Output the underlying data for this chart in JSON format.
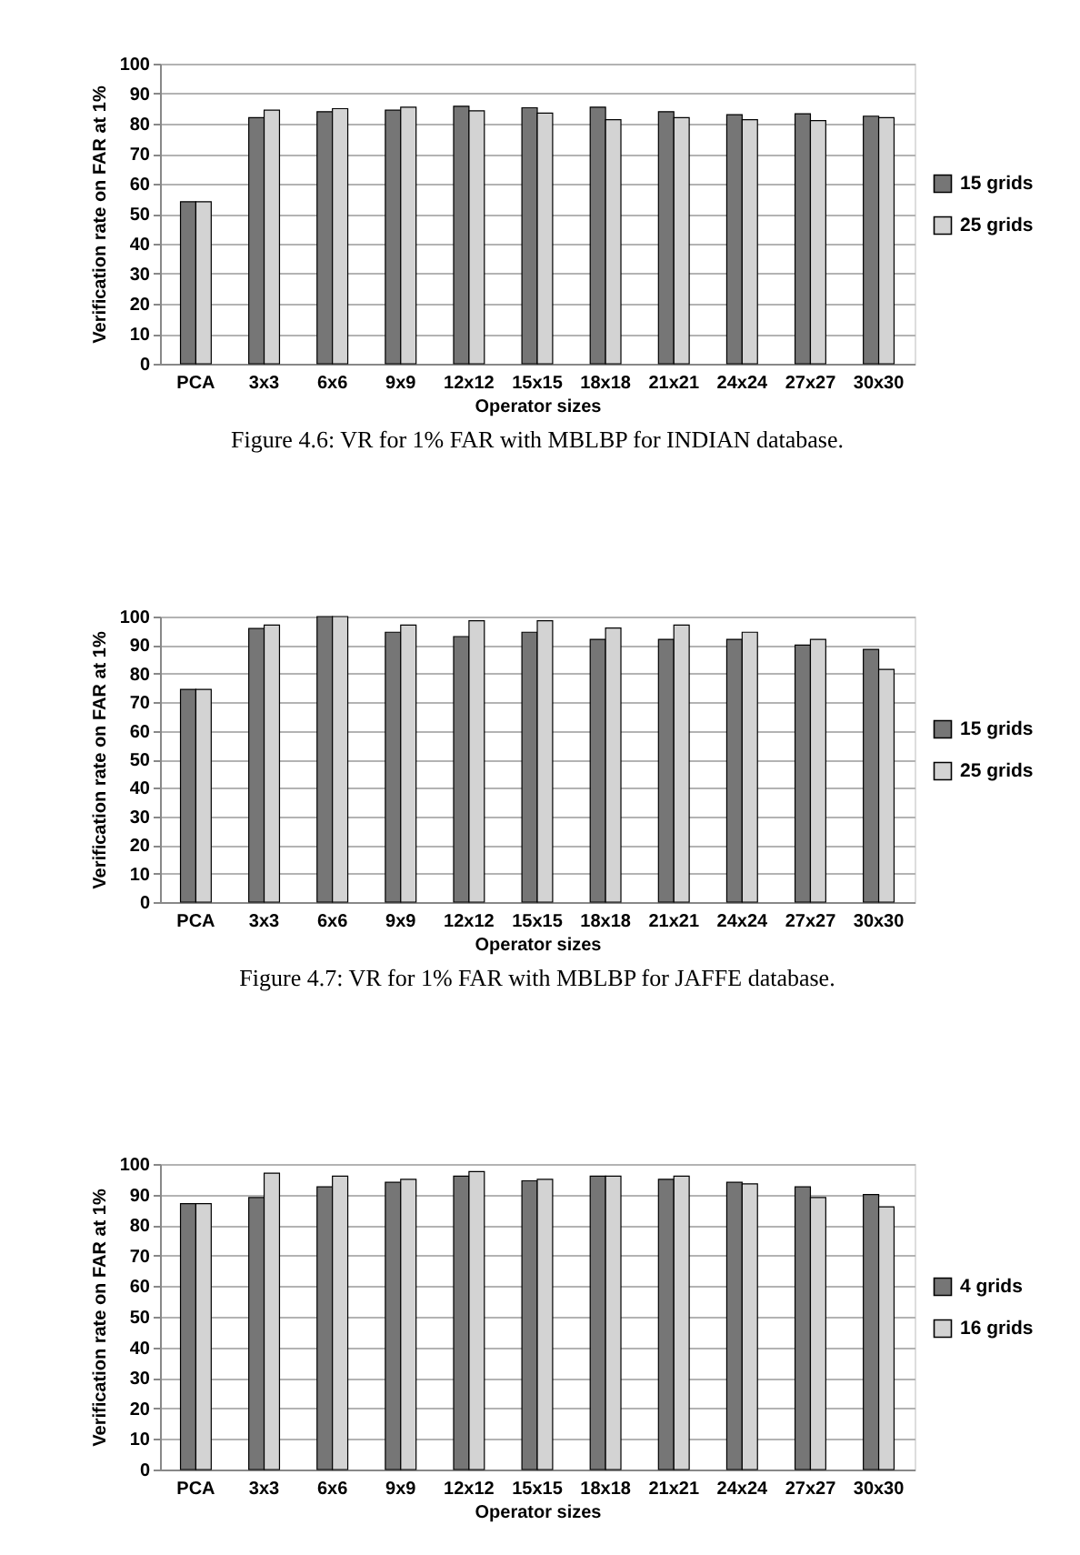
{
  "chart_data": [
    {
      "type": "bar",
      "xlabel": "Operator sizes",
      "ylabel": "Verification rate on FAR at 1%",
      "categories": [
        "PCA",
        "3x3",
        "6x6",
        "9x9",
        "12x12",
        "15x15",
        "18x18",
        "21x21",
        "24x24",
        "27x27",
        "30x30"
      ],
      "series": [
        {
          "name": "15 grids",
          "color": "#767676",
          "values": [
            54,
            82,
            84,
            84.5,
            85.8,
            85.3,
            85.5,
            84,
            83,
            83.3,
            82.5
          ]
        },
        {
          "name": "25 grids",
          "color": "#d3d3d3",
          "values": [
            54,
            84.5,
            85,
            85.5,
            84.3,
            83.5,
            81.3,
            82,
            81.3,
            81,
            82
          ]
        }
      ],
      "ylim": [
        0,
        100
      ],
      "yticks": [
        0,
        10,
        20,
        30,
        40,
        50,
        60,
        70,
        80,
        90,
        100
      ],
      "grid": "y",
      "legend": "right",
      "annotations": [
        "Figure 4.6: VR for 1% FAR with MBLBP for INDIAN database."
      ]
    },
    {
      "type": "bar",
      "xlabel": "Operator sizes",
      "ylabel": "Verification rate on FAR at 1%",
      "categories": [
        "PCA",
        "3x3",
        "6x6",
        "9x9",
        "12x12",
        "15x15",
        "18x18",
        "21x21",
        "24x24",
        "27x27",
        "30x30"
      ],
      "series": [
        {
          "name": "15 grids",
          "color": "#767676",
          "values": [
            74.5,
            95.8,
            100,
            94.5,
            93,
            94.5,
            92,
            92,
            92,
            90,
            88.5
          ]
        },
        {
          "name": "25 grids",
          "color": "#d3d3d3",
          "values": [
            74.5,
            97,
            100,
            97,
            98.5,
            98.5,
            96,
            97,
            94.5,
            92,
            81.5
          ]
        }
      ],
      "ylim": [
        0,
        100
      ],
      "yticks": [
        0,
        10,
        20,
        30,
        40,
        50,
        60,
        70,
        80,
        90,
        100
      ],
      "grid": "y",
      "legend": "right",
      "annotations": [
        "Figure 4.7: VR for 1% FAR with MBLBP for JAFFE database."
      ]
    },
    {
      "type": "bar",
      "xlabel": "Operator sizes",
      "ylabel": "Verification rate on FAR at 1%",
      "categories": [
        "PCA",
        "3x3",
        "6x6",
        "9x9",
        "12x12",
        "15x15",
        "18x18",
        "21x21",
        "24x24",
        "27x27",
        "30x30"
      ],
      "series": [
        {
          "name": "4 grids",
          "color": "#767676",
          "values": [
            87,
            89,
            92.5,
            94,
            96,
            94.5,
            96,
            95,
            94,
            92.5,
            90
          ]
        },
        {
          "name": "16 grids",
          "color": "#d3d3d3",
          "values": [
            87,
            97,
            96,
            95,
            97.5,
            95,
            96,
            96,
            93.5,
            89,
            86
          ]
        }
      ],
      "ylim": [
        0,
        100
      ],
      "yticks": [
        0,
        10,
        20,
        30,
        40,
        50,
        60,
        70,
        80,
        90,
        100
      ],
      "grid": "y",
      "legend": "right"
    }
  ]
}
